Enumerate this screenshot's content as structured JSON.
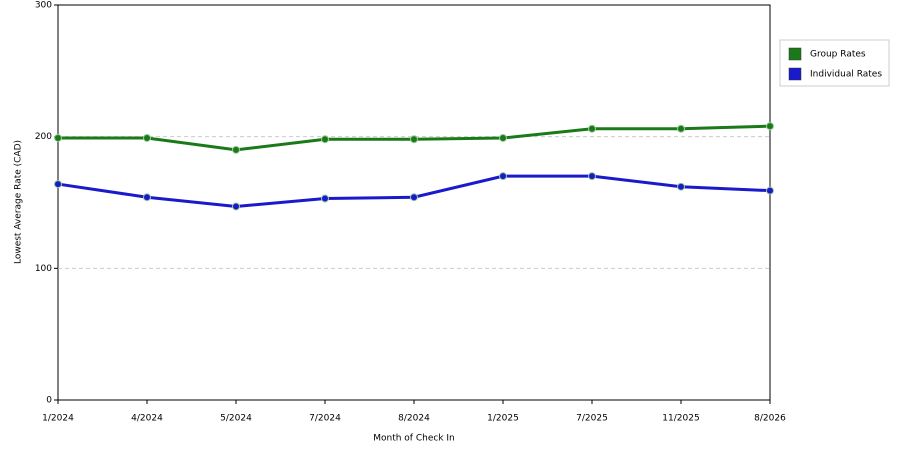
{
  "chart_data": {
    "type": "line",
    "x_label": "Month of Check In",
    "y_label": "Lowest Average Rate (CAD)",
    "categories": [
      "1/2024",
      "4/2024",
      "5/2024",
      "7/2024",
      "8/2024",
      "1/2025",
      "7/2025",
      "11/2025",
      "8/2026"
    ],
    "series": [
      {
        "name": "Group Rates",
        "color": "#1a7a1a",
        "values": [
          199,
          199,
          190,
          198,
          198,
          199,
          206,
          206,
          208
        ]
      },
      {
        "name": "Individual Rates",
        "color": "#1a1acc",
        "values": [
          164,
          154,
          147,
          153,
          154,
          170,
          170,
          162,
          159
        ]
      }
    ],
    "ylim": [
      0,
      300
    ],
    "yticks": [
      0,
      100,
      200,
      300
    ],
    "grid": true,
    "legend": "right"
  }
}
